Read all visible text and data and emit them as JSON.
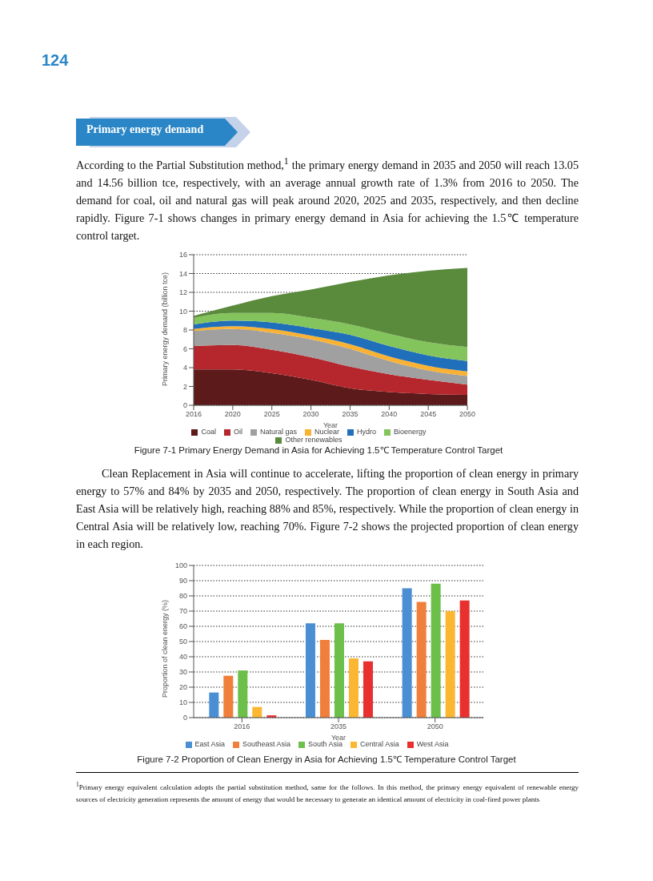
{
  "chart_data": [
    {
      "type": "area",
      "title": "Figure 7-1   Primary Energy Demand in Asia for Achieving 1.5℃ Temperature Control Target",
      "xlabel": "Year",
      "ylabel": "Primary energy demand  (billion tce)",
      "categories": [
        "2016",
        "2020",
        "2025",
        "2030",
        "2035",
        "2040",
        "2045",
        "2050"
      ],
      "stacked": true,
      "ylim": [
        0,
        16
      ],
      "yticks": [
        0,
        2,
        4,
        6,
        8,
        10,
        12,
        14,
        16
      ],
      "grid": "y",
      "legend": "bottom",
      "series": [
        {
          "name": "Coal",
          "color": "#5c1a1a",
          "values": [
            3.8,
            3.8,
            3.4,
            2.7,
            1.8,
            1.4,
            1.2,
            1.1
          ]
        },
        {
          "name": "Oil",
          "color": "#b5272d",
          "values": [
            2.5,
            2.6,
            2.5,
            2.4,
            2.3,
            1.9,
            1.5,
            1.1
          ]
        },
        {
          "name": "Natural gas",
          "color": "#a0a0a0",
          "values": [
            1.6,
            1.7,
            1.8,
            1.9,
            1.9,
            1.4,
            1.0,
            0.9
          ]
        },
        {
          "name": "Nuclear",
          "color": "#f9b233",
          "values": [
            0.2,
            0.3,
            0.4,
            0.4,
            0.5,
            0.5,
            0.5,
            0.5
          ]
        },
        {
          "name": "Hydro",
          "color": "#1f6fba",
          "values": [
            0.5,
            0.6,
            0.7,
            0.8,
            1.0,
            1.1,
            1.1,
            1.1
          ]
        },
        {
          "name": "Bioenergy",
          "color": "#84c45c",
          "values": [
            0.7,
            0.8,
            1.0,
            1.1,
            1.1,
            1.3,
            1.4,
            1.5
          ]
        },
        {
          "name": "Other renewables",
          "color": "#5a8a3c",
          "values": [
            0.2,
            0.8,
            1.8,
            3.0,
            4.5,
            6.2,
            7.6,
            8.4
          ]
        }
      ],
      "annotations": [
        "124",
        "Primary energy demand",
        "According to the Partial Substitution method,$^{1}$ the primary energy demand in 2035 and 2050 will reach 13.05 and 14.56 billion tce, respectively, with an average annual growth rate of 1.3% from 2016 to 2050. The demand for coal, oil and natural gas will peak around 2020, 2025 and 2035, respectively, and then decline rapidly. Figure 7-1 shows changes in primary energy demand in Asia for achieving the 1.5℃ temperature control target."
      ]
    },
    {
      "type": "bar",
      "title": "Figure 7-2   Proportion of Clean Energy in Asia for Achieving 1.5℃ Temperature Control Target",
      "xlabel": "Year",
      "ylabel": "Proportion of clean energy (%)",
      "categories": [
        "2016",
        "2035",
        "2050"
      ],
      "ylim": [
        0,
        100
      ],
      "yticks": [
        0,
        10,
        20,
        30,
        40,
        50,
        60,
        70,
        80,
        90,
        100
      ],
      "grid": "y",
      "legend": "bottom",
      "series": [
        {
          "name": "East Asia",
          "color": "#4a8fd4",
          "values": [
            16.5,
            62,
            85
          ]
        },
        {
          "name": "Southeast Asia",
          "color": "#f07f3c",
          "values": [
            27.5,
            51,
            76
          ]
        },
        {
          "name": "South Asia",
          "color": "#6cc04a",
          "values": [
            31,
            62,
            88
          ]
        },
        {
          "name": "Central Asia",
          "color": "#fbb731",
          "values": [
            7,
            39,
            70
          ]
        },
        {
          "name": "West Asia",
          "color": "#e8312e",
          "values": [
            1.5,
            37,
            77
          ]
        }
      ],
      "annotations": [
        "Clean Replacement in Asia will continue to accelerate, lifting the proportion of clean energy in primary energy to 57% and 84% by 2035 and 2050, respectively. The proportion of clean energy in South Asia and East Asia will be relatively high, reaching 88% and 85%, respectively. While the proportion of clean energy in Central Asia will be relatively low, reaching 70%. Figure 7-2 shows the projected proportion of clean energy in each region.",
        "$^{1}$Primary energy equivalent calculation adopts the partial substitution method, same for the follows. In this method, the primary energy equivalent of renewable energy sources of electricity generation represents the amount of energy that would be necessary to generate an identical amount of electricity in coal-fired power plants"
      ]
    }
  ]
}
